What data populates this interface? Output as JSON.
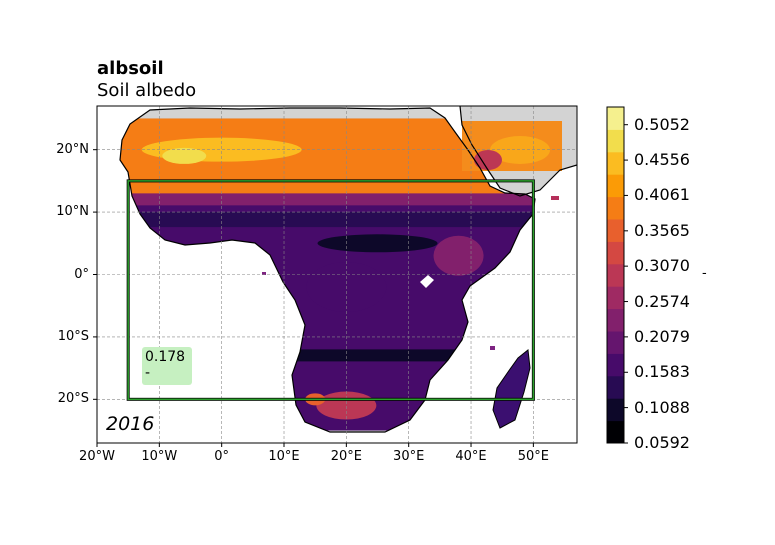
{
  "title": {
    "variable": "albsoil",
    "long_name": "Soil albedo"
  },
  "map": {
    "projection": "PlateCarree",
    "extent": {
      "lon": [
        -20,
        57
      ],
      "lat": [
        -27,
        27
      ]
    },
    "lat_ticks": [
      {
        "value": 20,
        "label": "20°N"
      },
      {
        "value": 10,
        "label": "10°N"
      },
      {
        "value": 0,
        "label": "0°"
      },
      {
        "value": -10,
        "label": "10°S"
      },
      {
        "value": -20,
        "label": "20°S"
      }
    ],
    "lon_ticks": [
      {
        "value": -20,
        "label": "20°W"
      },
      {
        "value": -10,
        "label": "10°W"
      },
      {
        "value": 0,
        "label": "0°"
      },
      {
        "value": 10,
        "label": "10°E"
      },
      {
        "value": 20,
        "label": "20°E"
      },
      {
        "value": 30,
        "label": "30°E"
      },
      {
        "value": 40,
        "label": "40°E"
      },
      {
        "value": 50,
        "label": "50°E"
      }
    ],
    "gridlines": true,
    "land_outside_data_color": "#d3d3d3",
    "ocean_color": "#ffffff",
    "data_region": {
      "lon": [
        -17,
        54
      ],
      "lat": [
        -25,
        25
      ]
    },
    "region_box": {
      "lon": [
        -15,
        50
      ],
      "lat": [
        -20,
        15
      ],
      "color": "#2ca02c"
    },
    "year": "2016",
    "region_mean": {
      "value": "0.178",
      "unit": "-"
    }
  },
  "colorbar": {
    "colormap": "inferno",
    "min": 0.0592,
    "max": 0.53,
    "tick_labels": [
      "0.0592",
      "0.1088",
      "0.1583",
      "0.2079",
      "0.2574",
      "0.3070",
      "0.3565",
      "0.4061",
      "0.4556",
      "0.5052"
    ],
    "tick_values": [
      0.0592,
      0.1088,
      0.1583,
      0.2079,
      0.2574,
      0.307,
      0.3565,
      0.4061,
      0.4556,
      0.5052
    ],
    "unit": "-",
    "colors": [
      "#000004",
      "#0d0829",
      "#280b53",
      "#470b6a",
      "#65156e",
      "#82206c",
      "#9f2a63",
      "#bb3755",
      "#d44842",
      "#e8602d",
      "#f57d15",
      "#fb9b06",
      "#fbbc21",
      "#f2dd4c",
      "#f5f08e"
    ]
  }
}
